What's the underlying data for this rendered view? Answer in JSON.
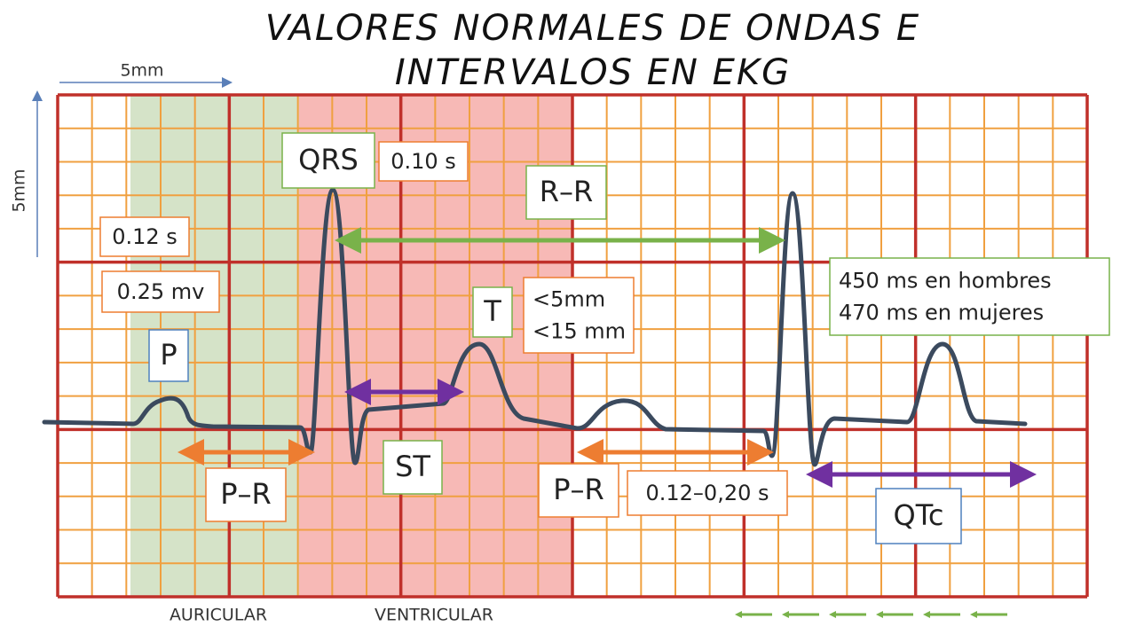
{
  "title": {
    "lines": [
      "VALORES NORMALES DE ONDAS E",
      "INTERVALOS EN EKG"
    ]
  },
  "scale": {
    "horizontal": "5mm",
    "vertical": "5mm"
  },
  "regions": {
    "atrial": "AURICULAR",
    "ventricular": "VENTRICULAR"
  },
  "boxes": [
    {
      "lines": [
        "QRS"
      ]
    },
    {
      "lines": [
        "0.10 s"
      ]
    },
    {
      "lines": [
        "R–R"
      ]
    },
    {
      "lines": [
        "0.12 s"
      ]
    },
    {
      "lines": [
        "0.25 mv"
      ]
    },
    {
      "lines": [
        "P"
      ]
    },
    {
      "lines": [
        "T"
      ]
    },
    {
      "lines": [
        "<5mm",
        "<15 mm"
      ]
    },
    {
      "lines": [
        "450 ms en hombres",
        "470 ms en mujeres"
      ]
    },
    {
      "lines": [
        "ST"
      ]
    },
    {
      "lines": [
        "P–R"
      ]
    },
    {
      "lines": [
        "P–R"
      ]
    },
    {
      "lines": [
        "0.12–0,20 s"
      ]
    },
    {
      "lines": [
        "QTc"
      ]
    }
  ]
}
